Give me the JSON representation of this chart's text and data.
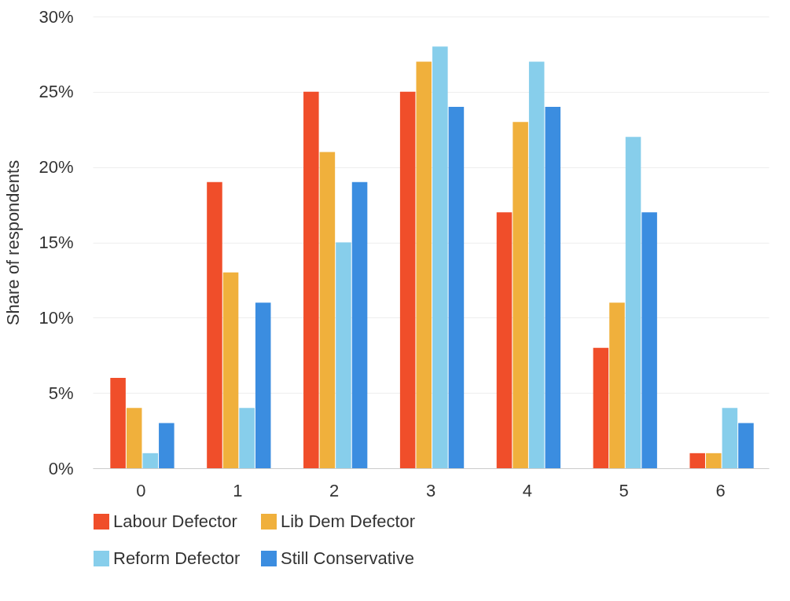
{
  "chart_data": {
    "type": "bar",
    "ylabel": "Share of respondents",
    "categories": [
      "0",
      "1",
      "2",
      "3",
      "4",
      "5",
      "6"
    ],
    "series": [
      {
        "name": "Labour Defector",
        "color": "#f04e2a",
        "values": [
          6,
          19,
          25,
          25,
          17,
          8,
          1
        ]
      },
      {
        "name": "Lib Dem Defector",
        "color": "#f0b03c",
        "values": [
          4,
          13,
          21,
          27,
          23,
          11,
          1
        ]
      },
      {
        "name": "Reform Defector",
        "color": "#87ceeb",
        "values": [
          1,
          4,
          15,
          28,
          27,
          22,
          4
        ]
      },
      {
        "name": "Still Conservative",
        "color": "#3b8de0",
        "values": [
          3,
          11,
          19,
          24,
          24,
          17,
          3
        ]
      }
    ],
    "ylim": [
      0,
      30
    ],
    "yticks": [
      {
        "value": 0,
        "label": "0%"
      },
      {
        "value": 5,
        "label": "5%"
      },
      {
        "value": 10,
        "label": "10%"
      },
      {
        "value": 15,
        "label": "15%"
      },
      {
        "value": 20,
        "label": "20%"
      },
      {
        "value": 25,
        "label": "25%"
      },
      {
        "value": 30,
        "label": "30%"
      }
    ],
    "grid": "y",
    "legend": "bottom"
  }
}
